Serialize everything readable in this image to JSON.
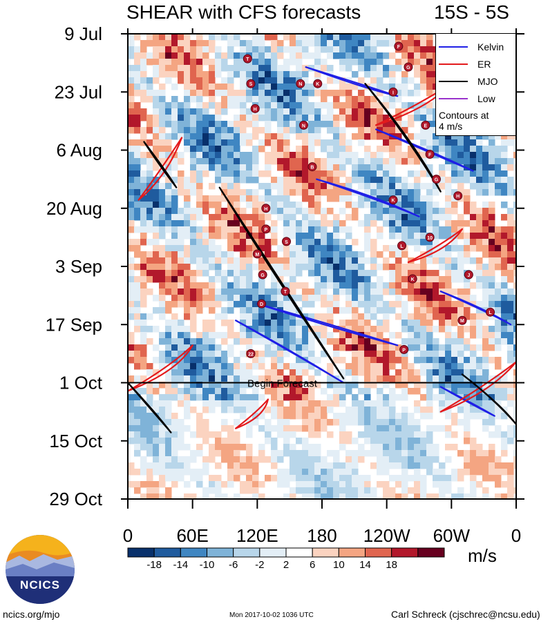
{
  "title_left": "SHEAR with CFS forecasts",
  "title_right": "15S - 5S",
  "chart_data": {
    "type": "heatmap",
    "description_role": "Hovmoller of vertical wind shear anomalies with filtered wave contours",
    "x_axis": {
      "ticks": [
        {
          "lon": 0,
          "label": "0"
        },
        {
          "lon": 60,
          "label": "60E"
        },
        {
          "lon": 120,
          "label": "120E"
        },
        {
          "lon": 180,
          "label": "180"
        },
        {
          "lon": 240,
          "label": "120W"
        },
        {
          "lon": 300,
          "label": "60W"
        },
        {
          "lon": 360,
          "label": "0"
        }
      ],
      "range": [
        0,
        360
      ]
    },
    "y_axis": {
      "ticks": [
        {
          "day": 0,
          "label": "9 Jul"
        },
        {
          "day": 14,
          "label": "23 Jul"
        },
        {
          "day": 28,
          "label": "6 Aug"
        },
        {
          "day": 42,
          "label": "20 Aug"
        },
        {
          "day": 56,
          "label": "3 Sep"
        },
        {
          "day": 70,
          "label": "17 Sep"
        },
        {
          "day": 84,
          "label": "1 Oct"
        },
        {
          "day": 98,
          "label": "15 Oct"
        },
        {
          "day": 112,
          "label": "29 Oct"
        }
      ],
      "range": [
        0,
        112
      ],
      "direction": "time increases downward"
    },
    "begin_forecast": {
      "day": 84,
      "label": "Begin Forecast"
    },
    "legend": {
      "entries": [
        {
          "name": "Kelvin",
          "color": "#1f1fe6"
        },
        {
          "name": "ER",
          "color": "#e31a1c"
        },
        {
          "name": "MJO",
          "color": "#000000"
        },
        {
          "name": "Low",
          "color": "#9933cc"
        }
      ],
      "note_line1": "Contours at",
      "note_line2": "4 m/s",
      "position": "top-right"
    },
    "colorbar": {
      "labels": [
        "-18",
        "-14",
        "-10",
        "-6",
        "-2",
        "2",
        "6",
        "10",
        "14",
        "18"
      ],
      "colors": [
        "#08306b",
        "#1f5b9e",
        "#3f86c2",
        "#7fb3d8",
        "#b8d6ea",
        "#e3eef6",
        "#ffffff",
        "#fbd3c0",
        "#f4a582",
        "#e0654f",
        "#b2182b",
        "#67001f"
      ],
      "units": "m/s"
    },
    "wave_contours": [
      {
        "type": "Kelvin",
        "lon": [
          100,
          150,
          200
        ],
        "day": [
          69,
          76,
          84
        ]
      },
      {
        "type": "Kelvin",
        "lon": [
          120,
          190,
          250
        ],
        "day": [
          65,
          70,
          75
        ]
      },
      {
        "type": "Kelvin",
        "lon": [
          175,
          230,
          270
        ],
        "day": [
          35,
          39,
          44
        ]
      },
      {
        "type": "Kelvin",
        "lon": [
          165,
          215,
          250
        ],
        "day": [
          8,
          12,
          15
        ]
      },
      {
        "type": "Kelvin",
        "lon": [
          230,
          280,
          320
        ],
        "day": [
          23,
          28,
          33
        ]
      },
      {
        "type": "Kelvin",
        "lon": [
          290,
          330,
          355
        ],
        "day": [
          62,
          66,
          70
        ]
      },
      {
        "type": "Kelvin",
        "lon": [
          290,
          320,
          340
        ],
        "day": [
          85,
          89,
          92
        ]
      },
      {
        "type": "ER",
        "lon": [
          0,
          40,
          60
        ],
        "day": [
          86,
          80,
          75
        ]
      },
      {
        "type": "ER",
        "lon": [
          230,
          270,
          300
        ],
        "day": [
          22,
          17,
          12
        ]
      },
      {
        "type": "ER",
        "lon": [
          260,
          290,
          310
        ],
        "day": [
          55,
          51,
          47
        ]
      },
      {
        "type": "ER",
        "lon": [
          10,
          30,
          50
        ],
        "day": [
          40,
          33,
          25
        ]
      },
      {
        "type": "ER",
        "lon": [
          100,
          120,
          130
        ],
        "day": [
          95,
          91,
          88
        ]
      },
      {
        "type": "ER",
        "lon": [
          290,
          330,
          360
        ],
        "day": [
          91,
          85,
          79
        ]
      },
      {
        "type": "MJO",
        "lon": [
          85,
          140,
          200
        ],
        "day": [
          37,
          60,
          83
        ]
      },
      {
        "type": "MJO",
        "lon": [
          220,
          260,
          290
        ],
        "day": [
          12,
          25,
          38
        ]
      },
      {
        "type": "MJO",
        "lon": [
          0,
          20,
          40
        ],
        "day": [
          84,
          90,
          96
        ]
      },
      {
        "type": "MJO",
        "lon": [
          310,
          340,
          360
        ],
        "day": [
          82,
          88,
          94
        ]
      },
      {
        "type": "MJO",
        "lon": [
          15,
          30,
          45
        ],
        "day": [
          26,
          32,
          37
        ]
      }
    ],
    "storms": [
      {
        "id": "T",
        "lon": 111,
        "day": 6
      },
      {
        "id": "S",
        "lon": 114,
        "day": 12
      },
      {
        "id": "H",
        "lon": 118,
        "day": 18
      },
      {
        "id": "N",
        "lon": 160,
        "day": 12
      },
      {
        "id": "K",
        "lon": 176,
        "day": 12
      },
      {
        "id": "N",
        "lon": 163,
        "day": 22
      },
      {
        "id": "B",
        "lon": 171,
        "day": 32
      },
      {
        "id": "H",
        "lon": 128,
        "day": 42
      },
      {
        "id": "P",
        "lon": 128,
        "day": 47
      },
      {
        "id": "S",
        "lon": 147,
        "day": 50
      },
      {
        "id": "M",
        "lon": 120,
        "day": 53
      },
      {
        "id": "G",
        "lon": 125,
        "day": 58
      },
      {
        "id": "T",
        "lon": 146,
        "day": 62
      },
      {
        "id": "D",
        "lon": 124,
        "day": 65
      },
      {
        "id": "22",
        "lon": 114,
        "day": 77
      },
      {
        "id": "F",
        "lon": 251,
        "day": 3
      },
      {
        "id": "G",
        "lon": 260,
        "day": 8
      },
      {
        "id": "I",
        "lon": 246,
        "day": 14
      },
      {
        "id": "E",
        "lon": 276,
        "day": 22
      },
      {
        "id": "F",
        "lon": 280,
        "day": 29
      },
      {
        "id": "G",
        "lon": 286,
        "day": 35
      },
      {
        "id": "H",
        "lon": 306,
        "day": 39
      },
      {
        "id": "K",
        "lon": 246,
        "day": 40
      },
      {
        "id": "L",
        "lon": 254,
        "day": 51
      },
      {
        "id": "K",
        "lon": 264,
        "day": 59
      },
      {
        "id": "J",
        "lon": 316,
        "day": 58
      },
      {
        "id": "M",
        "lon": 310,
        "day": 69
      },
      {
        "id": "P",
        "lon": 256,
        "day": 76
      },
      {
        "id": "10",
        "lon": 280,
        "day": 49
      },
      {
        "id": "L",
        "lon": 336,
        "day": 67
      }
    ]
  },
  "footer": {
    "site": "ncics.org/mjo",
    "timestamp": "Mon 2017-10-02 1036 UTC",
    "author": "Carl Schreck (cjschrec@ncsu.edu)",
    "logo_text": "NCICS"
  }
}
